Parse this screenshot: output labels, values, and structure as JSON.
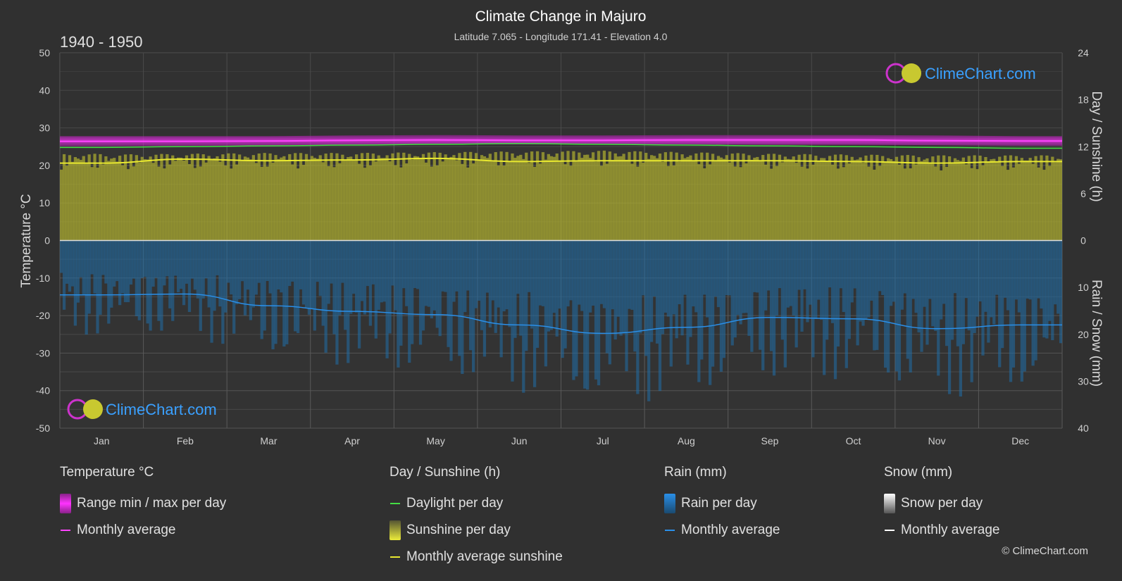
{
  "header": {
    "title": "Climate Change in Majuro",
    "subtitle": "Latitude 7.065 - Longitude 171.41 - Elevation 4.0",
    "period": "1940 - 1950"
  },
  "brand": {
    "logo_text": "ClimeChart.com",
    "copyright": "© ClimeChart.com"
  },
  "colors": {
    "background": "#303030",
    "temp_range": "#e020e0",
    "temp_avg": "#ff44ff",
    "daylight": "#44dd44",
    "sunshine_fill": "#a8a830",
    "sunshine_avg": "#e8e830",
    "rain_fill": "#1f6ea8",
    "rain_avg": "#2a8fe8",
    "logo": "#3aa0ff"
  },
  "chart_data": {
    "type": "area",
    "months": [
      "Jan",
      "Feb",
      "Mar",
      "Apr",
      "May",
      "Jun",
      "Jul",
      "Aug",
      "Sep",
      "Oct",
      "Nov",
      "Dec"
    ],
    "left_axis": {
      "label": "Temperature °C",
      "min": -50,
      "max": 50,
      "ticks": [
        "50",
        "40",
        "30",
        "20",
        "10",
        "0",
        "-10",
        "-20",
        "-30",
        "-40",
        "-50"
      ]
    },
    "right_axis_top": {
      "label": "Day / Sunshine (h)",
      "min": 0,
      "max": 24,
      "ticks": [
        "24",
        "18",
        "12",
        "6",
        "0"
      ]
    },
    "right_axis_bottom": {
      "label": "Rain / Snow (mm)",
      "min": 0,
      "max": 40,
      "ticks": [
        "0",
        "10",
        "20",
        "30",
        "40"
      ]
    },
    "series": [
      {
        "name": "Range min / max per day",
        "axis": "temperature",
        "min": [
          25.1,
          25.2,
          25.3,
          25.5,
          25.6,
          25.6,
          25.6,
          25.6,
          25.5,
          25.5,
          25.4,
          25.2
        ],
        "max": [
          27.8,
          27.8,
          27.8,
          28.0,
          28.1,
          28.0,
          28.0,
          28.1,
          28.1,
          28.1,
          28.0,
          27.8
        ]
      },
      {
        "name": "Monthly average",
        "axis": "temperature",
        "values": [
          26.4,
          26.4,
          26.5,
          26.7,
          26.8,
          26.7,
          26.7,
          26.8,
          26.8,
          26.8,
          26.6,
          26.5
        ]
      },
      {
        "name": "Daylight per day",
        "axis": "hours",
        "values": [
          11.9,
          12.0,
          12.1,
          12.2,
          12.3,
          12.4,
          12.3,
          12.2,
          12.1,
          12.0,
          11.9,
          11.8
        ]
      },
      {
        "name": "Sunshine per day",
        "axis": "hours",
        "values": [
          11.0,
          11.1,
          11.2,
          11.2,
          11.3,
          11.4,
          11.5,
          11.3,
          11.1,
          11.0,
          10.9,
          10.9
        ]
      },
      {
        "name": "Monthly average sunshine",
        "axis": "hours",
        "values": [
          9.9,
          10.4,
          10.2,
          10.3,
          10.5,
          10.1,
          10.2,
          10.2,
          10.2,
          10.1,
          9.9,
          10.1
        ]
      },
      {
        "name": "Rain per day",
        "axis": "rain",
        "values": [
          11.6,
          11.4,
          13.9,
          15.1,
          15.8,
          18.0,
          19.8,
          18.5,
          16.4,
          16.7,
          18.8,
          18.0
        ]
      },
      {
        "name": "Monthly average",
        "axis": "rain",
        "values": [
          11.6,
          11.4,
          13.9,
          15.1,
          15.8,
          18.0,
          19.8,
          18.5,
          16.4,
          16.7,
          18.8,
          18.0
        ]
      }
    ]
  },
  "legend": {
    "temperature": {
      "title": "Temperature °C",
      "items": [
        "Range min / max per day",
        "Monthly average"
      ]
    },
    "sunshine": {
      "title": "Day / Sunshine (h)",
      "items": [
        "Daylight per day",
        "Sunshine per day",
        "Monthly average sunshine"
      ]
    },
    "rain": {
      "title": "Rain (mm)",
      "items": [
        "Rain per day",
        "Monthly average"
      ]
    },
    "snow": {
      "title": "Snow (mm)",
      "items": [
        "Snow per day",
        "Monthly average"
      ]
    }
  }
}
